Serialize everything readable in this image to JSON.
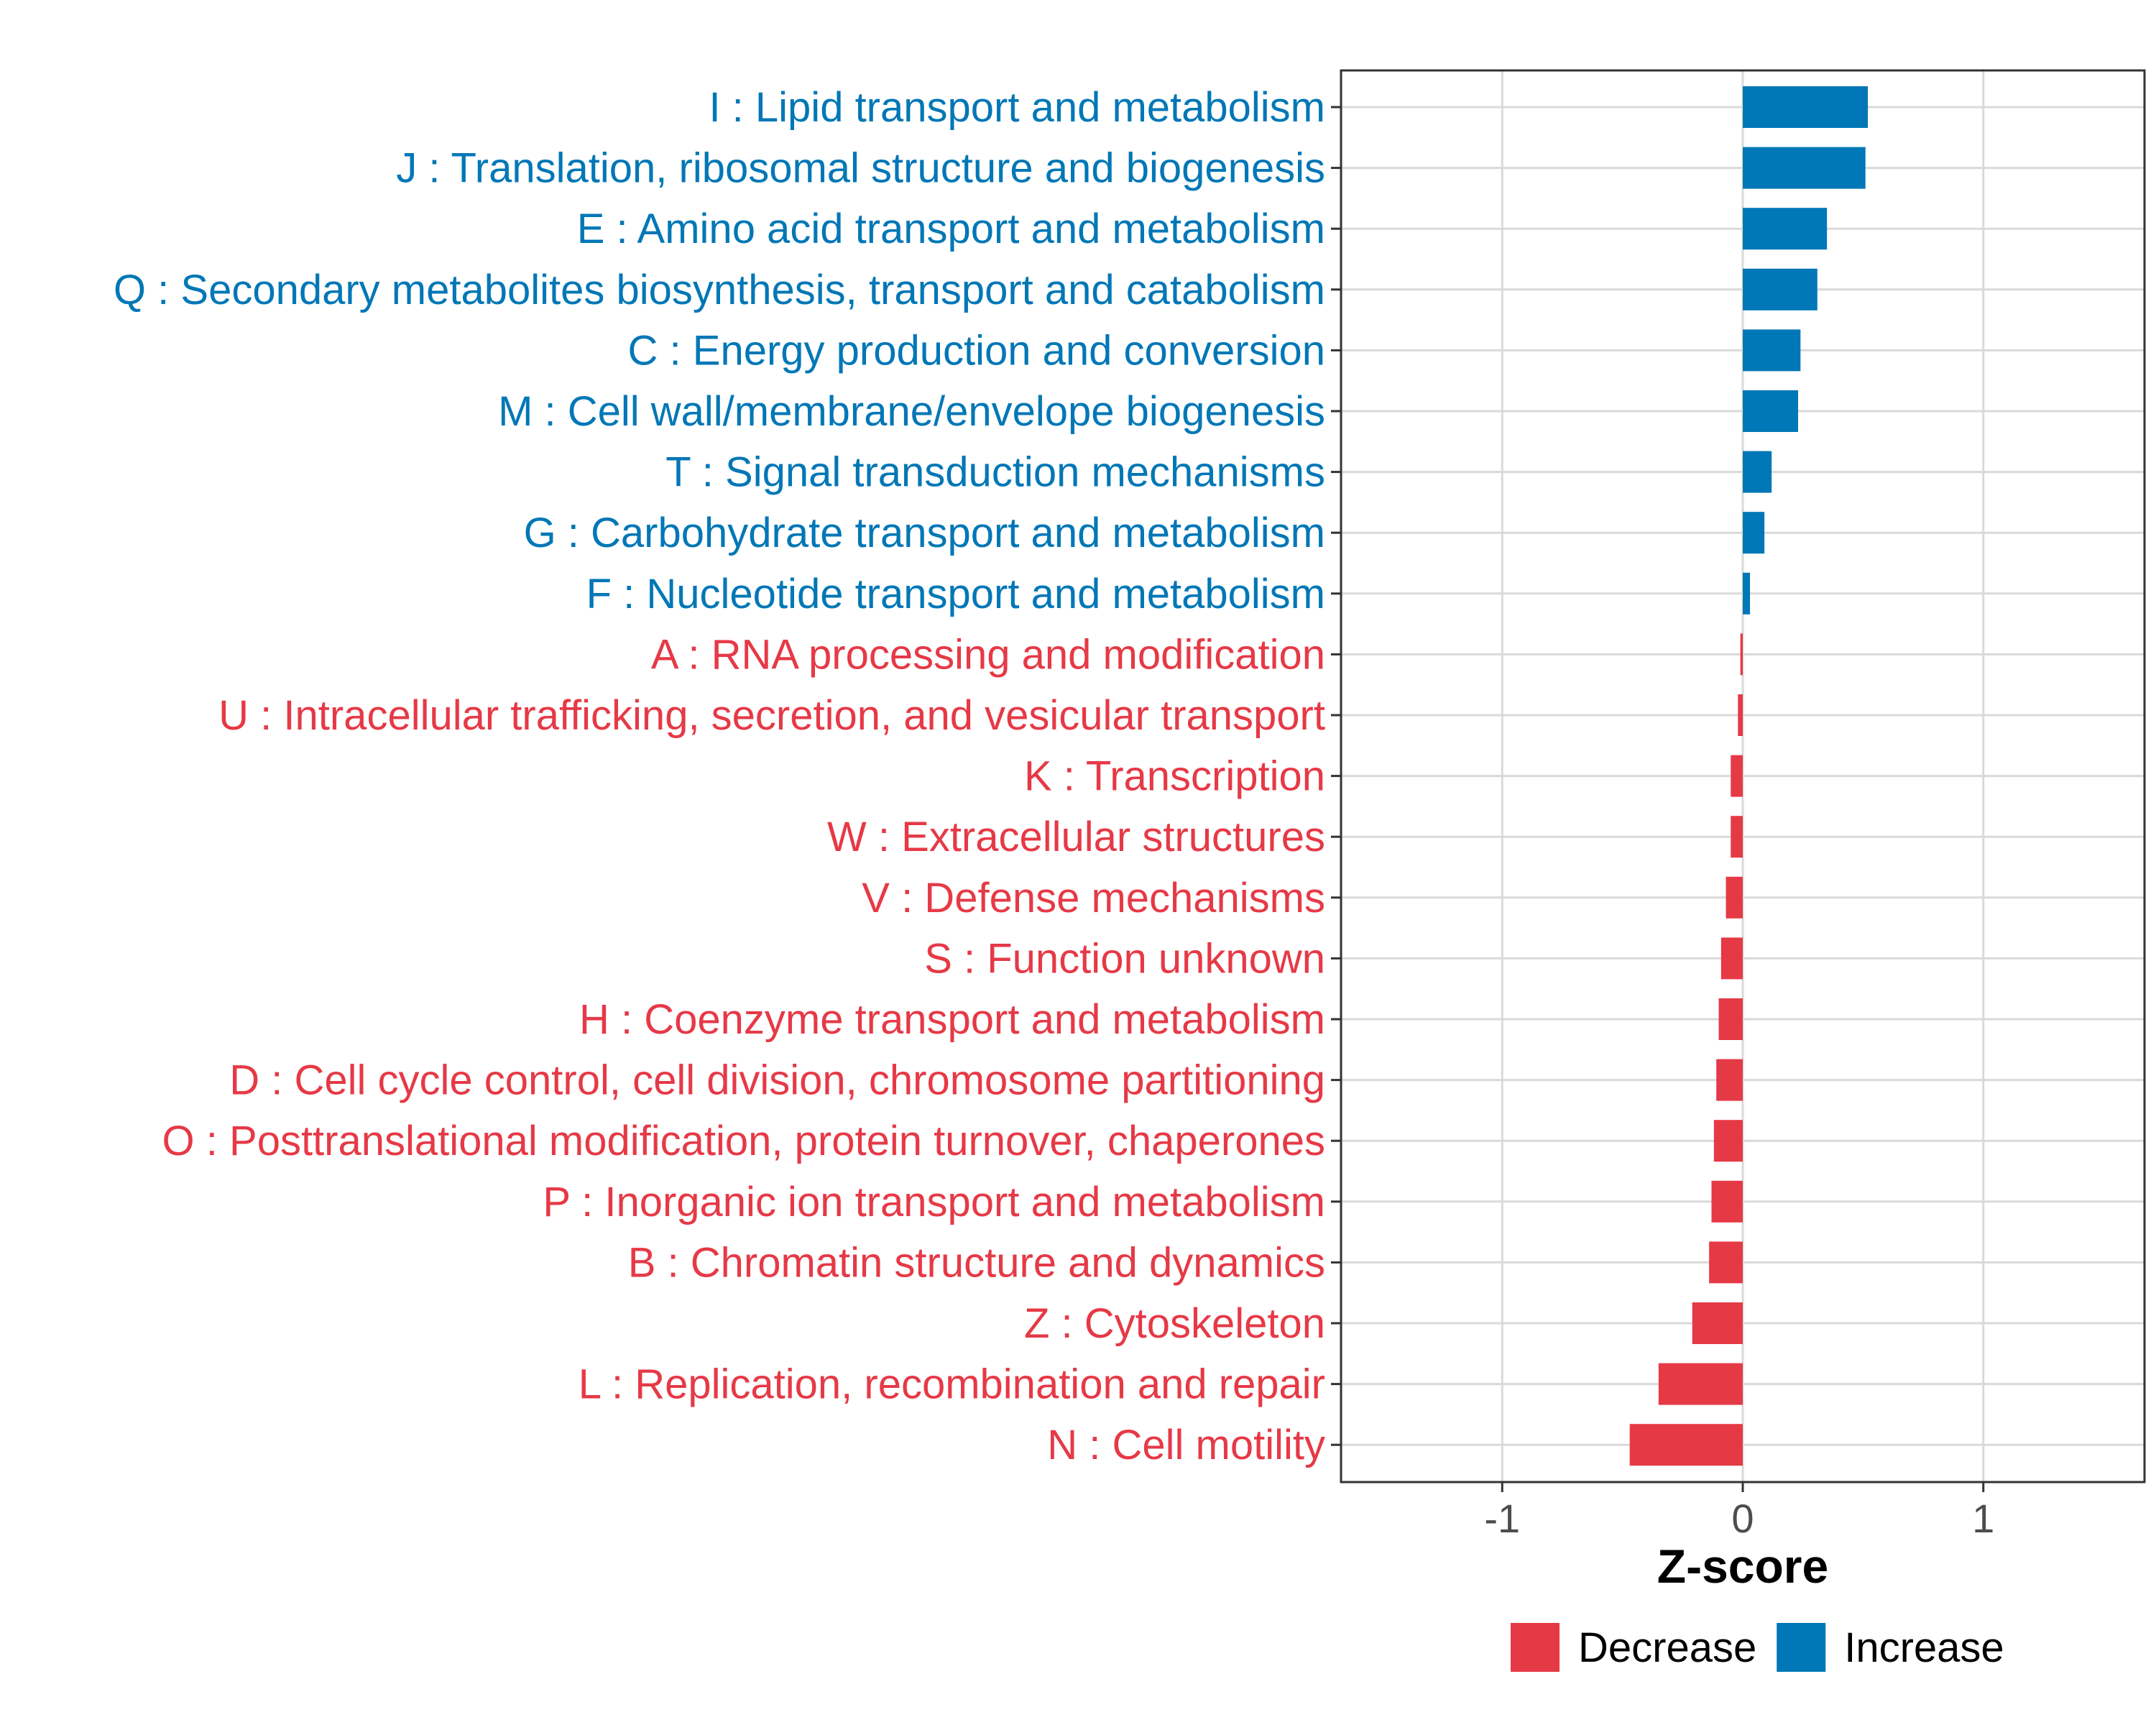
{
  "chart_data": {
    "type": "bar",
    "orientation": "horizontal",
    "xlabel": "Z-score",
    "ylabel": "",
    "xlim": [
      -1.67,
      1.67
    ],
    "xticks": [
      -1,
      0,
      1
    ],
    "xtick_labels": [
      "-1",
      "0",
      "1"
    ],
    "grid": true,
    "colors": {
      "Decrease": "#E63946",
      "Increase": "#0077B6"
    },
    "categories": [
      "I : Lipid transport and metabolism",
      "J : Translation, ribosomal structure and biogenesis",
      "E : Amino acid transport and metabolism",
      "Q : Secondary metabolites biosynthesis, transport and catabolism",
      "C : Energy production and conversion",
      "M : Cell wall/membrane/envelope biogenesis",
      "T : Signal transduction mechanisms",
      "G : Carbohydrate transport and metabolism",
      "F : Nucleotide transport and metabolism",
      "A : RNA processing and modification",
      "U : Intracellular trafficking, secretion, and vesicular transport",
      "K : Transcription",
      "W : Extracellular structures",
      "V : Defense mechanisms",
      "S : Function unknown",
      "H : Coenzyme transport and metabolism",
      "D : Cell cycle control, cell division, chromosome partitioning",
      "O : Posttranslational modification, protein turnover, chaperones",
      "P : Inorganic ion transport and metabolism",
      "B : Chromatin structure and dynamics",
      "Z : Cytoskeleton",
      "L : Replication, recombination and repair",
      "N : Cell motility"
    ],
    "values": [
      0.52,
      0.51,
      0.35,
      0.31,
      0.24,
      0.23,
      0.12,
      0.09,
      0.03,
      -0.01,
      -0.02,
      -0.05,
      -0.05,
      -0.07,
      -0.09,
      -0.1,
      -0.11,
      -0.12,
      -0.13,
      -0.14,
      -0.21,
      -0.35,
      -0.47
    ],
    "groups": [
      "Increase",
      "Increase",
      "Increase",
      "Increase",
      "Increase",
      "Increase",
      "Increase",
      "Increase",
      "Increase",
      "Decrease",
      "Decrease",
      "Decrease",
      "Decrease",
      "Decrease",
      "Decrease",
      "Decrease",
      "Decrease",
      "Decrease",
      "Decrease",
      "Decrease",
      "Decrease",
      "Decrease",
      "Decrease"
    ],
    "legend": {
      "position": "bottom",
      "entries": [
        "Decrease",
        "Increase"
      ]
    }
  }
}
